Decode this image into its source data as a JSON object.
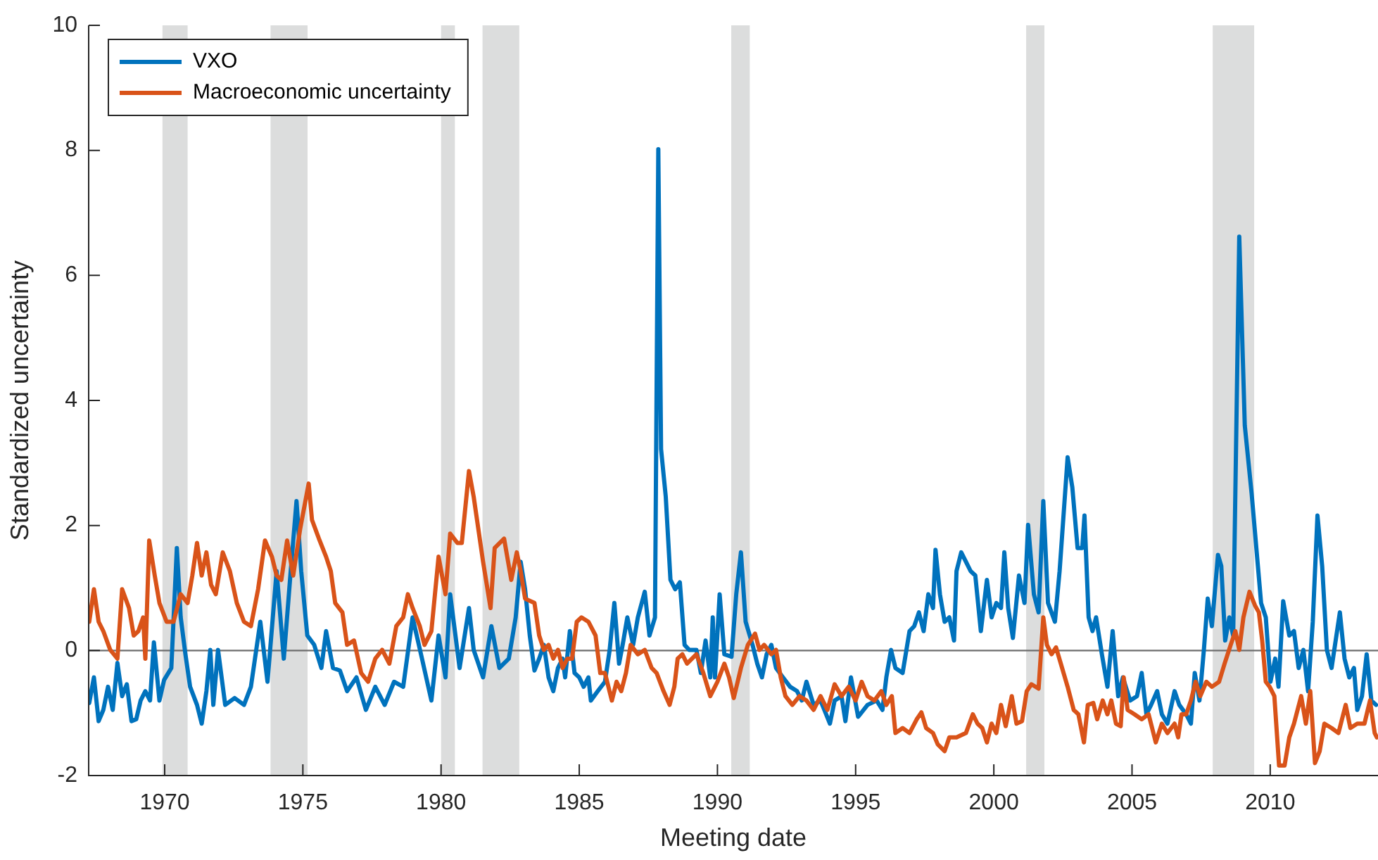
{
  "chart_data": {
    "type": "line",
    "xlabel": "Meeting date",
    "ylabel": "Standardized uncertainty",
    "xlim": [
      1967.25,
      2013.9
    ],
    "xticks": [
      1970,
      1975,
      1980,
      1985,
      1990,
      1995,
      2000,
      2005,
      2010
    ],
    "ylim": [
      -2,
      10
    ],
    "yticks": [
      -2,
      0,
      2,
      4,
      6,
      8,
      10
    ],
    "legend": "top left",
    "line_style": "solid",
    "marker": "none",
    "ref_lines": [
      {
        "axis": "y",
        "value": 0,
        "color": "#6e6e6e"
      }
    ],
    "bands": [
      {
        "axis": "x",
        "from": 1969.92,
        "to": 1970.83,
        "color": "#dcdddd"
      },
      {
        "axis": "x",
        "from": 1973.83,
        "to": 1975.17,
        "color": "#dcdddd"
      },
      {
        "axis": "x",
        "from": 1980.0,
        "to": 1980.5,
        "color": "#dcdddd"
      },
      {
        "axis": "x",
        "from": 1981.5,
        "to": 1982.83,
        "color": "#dcdddd"
      },
      {
        "axis": "x",
        "from": 1990.5,
        "to": 1991.17,
        "color": "#dcdddd"
      },
      {
        "axis": "x",
        "from": 2001.17,
        "to": 2001.83,
        "color": "#dcdddd"
      },
      {
        "axis": "x",
        "from": 2007.92,
        "to": 2009.42,
        "color": "#dcdddd"
      }
    ],
    "series": [
      {
        "name": "VXO",
        "color": "#0072bd",
        "x": [
          1967.27,
          1967.44,
          1967.61,
          1967.78,
          1967.95,
          1968.12,
          1968.29,
          1968.46,
          1968.63,
          1968.8,
          1968.97,
          1969.13,
          1969.3,
          1969.47,
          1969.61,
          1969.81,
          1969.98,
          1970.24,
          1970.44,
          1970.58,
          1970.75,
          1970.92,
          1971.17,
          1971.34,
          1971.51,
          1971.65,
          1971.76,
          1971.93,
          1972.19,
          1972.53,
          1972.87,
          1973.12,
          1973.46,
          1973.72,
          1974.05,
          1974.31,
          1974.56,
          1974.77,
          1974.94,
          1975.16,
          1975.41,
          1975.67,
          1975.84,
          1976.09,
          1976.34,
          1976.6,
          1976.94,
          1977.28,
          1977.62,
          1977.96,
          1978.3,
          1978.63,
          1978.97,
          1979.31,
          1979.65,
          1979.91,
          1980.16,
          1980.33,
          1980.67,
          1981.01,
          1981.18,
          1981.52,
          1981.82,
          1982.11,
          1982.45,
          1982.7,
          1982.88,
          1983.04,
          1983.21,
          1983.38,
          1983.55,
          1983.72,
          1983.89,
          1984.06,
          1984.23,
          1984.4,
          1984.49,
          1984.66,
          1984.83,
          1985.0,
          1985.16,
          1985.33,
          1985.42,
          1985.67,
          1985.93,
          1986.1,
          1986.27,
          1986.44,
          1986.57,
          1986.74,
          1986.95,
          1987.12,
          1987.37,
          1987.54,
          1987.74,
          1987.86,
          1987.96,
          1988.13,
          1988.3,
          1988.47,
          1988.64,
          1988.81,
          1988.98,
          1989.24,
          1989.4,
          1989.57,
          1989.74,
          1989.83,
          1989.91,
          1990.08,
          1990.25,
          1990.51,
          1990.68,
          1990.85,
          1991.02,
          1991.27,
          1991.44,
          1991.61,
          1991.78,
          1991.95,
          1992.12,
          1992.37,
          1992.63,
          1992.88,
          1993.05,
          1993.22,
          1993.48,
          1993.73,
          1994.07,
          1994.24,
          1994.49,
          1994.63,
          1994.83,
          1995.09,
          1995.43,
          1995.76,
          1995.97,
          1996.11,
          1996.28,
          1996.44,
          1996.7,
          1996.95,
          1997.12,
          1997.29,
          1997.46,
          1997.63,
          1997.8,
          1997.89,
          1998.05,
          1998.22,
          1998.39,
          1998.56,
          1998.65,
          1998.82,
          1998.99,
          1999.16,
          1999.33,
          1999.53,
          1999.75,
          1999.92,
          2000.09,
          2000.26,
          2000.38,
          2000.52,
          2000.69,
          2000.91,
          2001.11,
          2001.24,
          2001.45,
          2001.62,
          2001.79,
          2001.96,
          2002.21,
          2002.38,
          2002.67,
          2002.84,
          2003.03,
          2003.2,
          2003.28,
          2003.43,
          2003.57,
          2003.7,
          2003.91,
          2004.11,
          2004.3,
          2004.5,
          2004.67,
          2004.93,
          2005.18,
          2005.35,
          2005.52,
          2005.69,
          2005.91,
          2006.08,
          2006.28,
          2006.54,
          2006.71,
          2006.96,
          2007.13,
          2007.27,
          2007.44,
          2007.6,
          2007.74,
          2007.89,
          2008.11,
          2008.23,
          2008.37,
          2008.52,
          2008.66,
          2008.88,
          2009.08,
          2009.33,
          2009.67,
          2009.84,
          2010.01,
          2010.18,
          2010.3,
          2010.47,
          2010.69,
          2010.86,
          2011.03,
          2011.2,
          2011.37,
          2011.54,
          2011.71,
          2011.88,
          2012.05,
          2012.22,
          2012.52,
          2012.69,
          2012.86,
          2013.03,
          2013.15,
          2013.32,
          2013.49,
          2013.66,
          2013.83
        ],
        "values": [
          -0.84,
          -0.43,
          -1.13,
          -0.95,
          -0.58,
          -0.95,
          -0.2,
          -0.73,
          -0.54,
          -1.13,
          -1.1,
          -0.8,
          -0.65,
          -0.8,
          0.13,
          -0.8,
          -0.47,
          -0.28,
          1.64,
          0.53,
          -0.06,
          -0.58,
          -0.87,
          -1.17,
          -0.65,
          0.01,
          -0.87,
          0.01,
          -0.87,
          -0.76,
          -0.87,
          -0.58,
          0.46,
          -0.5,
          1.27,
          -0.13,
          1.27,
          2.39,
          1.27,
          0.24,
          0.09,
          -0.28,
          0.31,
          -0.28,
          -0.32,
          -0.65,
          -0.43,
          -0.95,
          -0.58,
          -0.87,
          -0.5,
          -0.58,
          0.53,
          -0.13,
          -0.8,
          0.24,
          -0.43,
          0.9,
          -0.28,
          0.68,
          0.01,
          -0.43,
          0.39,
          -0.28,
          -0.13,
          0.53,
          1.42,
          0.98,
          0.24,
          -0.32,
          -0.13,
          0.09,
          -0.43,
          -0.65,
          -0.28,
          -0.13,
          -0.43,
          0.31,
          -0.36,
          -0.43,
          -0.58,
          -0.43,
          -0.8,
          -0.65,
          -0.5,
          0.01,
          0.76,
          -0.21,
          0.09,
          0.53,
          0.09,
          0.53,
          0.94,
          0.24,
          0.53,
          8.02,
          3.22,
          2.46,
          1.13,
          0.98,
          1.09,
          0.09,
          0.01,
          0.01,
          -0.36,
          0.16,
          -0.43,
          0.53,
          -0.43,
          0.9,
          -0.06,
          -0.1,
          0.9,
          1.57,
          0.46,
          0.09,
          -0.21,
          -0.43,
          -0.06,
          0.09,
          -0.28,
          -0.43,
          -0.58,
          -0.65,
          -0.8,
          -0.5,
          -0.87,
          -0.8,
          -1.17,
          -0.8,
          -0.73,
          -1.13,
          -0.43,
          -1.06,
          -0.87,
          -0.8,
          -0.95,
          -0.43,
          0.01,
          -0.28,
          -0.36,
          0.31,
          0.39,
          0.61,
          0.31,
          0.9,
          0.68,
          1.61,
          0.9,
          0.46,
          0.53,
          0.16,
          1.27,
          1.57,
          1.42,
          1.27,
          1.2,
          0.31,
          1.13,
          0.53,
          0.76,
          0.68,
          1.57,
          0.68,
          0.2,
          1.2,
          0.76,
          2.01,
          0.9,
          0.61,
          2.39,
          0.76,
          0.46,
          1.27,
          3.09,
          2.61,
          1.64,
          1.64,
          2.16,
          0.53,
          0.31,
          0.53,
          -0.06,
          -0.58,
          0.31,
          -0.73,
          -0.43,
          -0.8,
          -0.73,
          -0.36,
          -1.02,
          -0.87,
          -0.65,
          -1.02,
          -1.17,
          -0.65,
          -0.87,
          -1.02,
          -1.17,
          -0.36,
          -0.8,
          0.01,
          0.83,
          0.39,
          1.53,
          1.35,
          0.16,
          0.53,
          0.24,
          6.62,
          3.6,
          2.5,
          0.76,
          0.53,
          -0.5,
          -0.13,
          -0.58,
          0.79,
          0.24,
          0.31,
          -0.28,
          0.01,
          -0.65,
          0.46,
          2.16,
          1.35,
          0.01,
          -0.28,
          0.61,
          -0.13,
          -0.43,
          -0.28,
          -0.95,
          -0.73,
          -0.06,
          -0.8,
          -0.87
        ]
      },
      {
        "name": "Macroeconomic uncertainty",
        "color": "#d95319",
        "x": [
          1967.27,
          1967.44,
          1967.61,
          1967.78,
          1968.03,
          1968.29,
          1968.46,
          1968.71,
          1968.88,
          1969.05,
          1969.22,
          1969.3,
          1969.44,
          1969.64,
          1969.81,
          1970.07,
          1970.32,
          1970.58,
          1970.83,
          1971.0,
          1971.17,
          1971.34,
          1971.51,
          1971.68,
          1971.85,
          1972.1,
          1972.36,
          1972.61,
          1972.87,
          1973.12,
          1973.38,
          1973.63,
          1973.88,
          1974.05,
          1974.22,
          1974.43,
          1974.65,
          1974.9,
          1975.21,
          1975.33,
          1975.58,
          1975.84,
          1976.01,
          1976.17,
          1976.43,
          1976.6,
          1976.85,
          1977.11,
          1977.36,
          1977.62,
          1977.87,
          1978.13,
          1978.38,
          1978.63,
          1978.8,
          1978.97,
          1979.23,
          1979.4,
          1979.65,
          1979.91,
          1980.16,
          1980.33,
          1980.59,
          1980.75,
          1981.01,
          1981.18,
          1981.52,
          1981.79,
          1981.94,
          1982.28,
          1982.54,
          1982.74,
          1982.88,
          1983.04,
          1983.38,
          1983.55,
          1983.72,
          1983.89,
          1984.06,
          1984.23,
          1984.4,
          1984.57,
          1984.74,
          1984.91,
          1985.08,
          1985.33,
          1985.59,
          1985.76,
          1985.93,
          1986.18,
          1986.35,
          1986.52,
          1986.69,
          1986.86,
          1987.12,
          1987.37,
          1987.62,
          1987.8,
          1988.05,
          1988.27,
          1988.44,
          1988.56,
          1988.73,
          1988.9,
          1989.24,
          1989.49,
          1989.74,
          1990.0,
          1990.25,
          1990.42,
          1990.59,
          1990.85,
          1991.1,
          1991.36,
          1991.52,
          1991.69,
          1991.95,
          1992.12,
          1992.29,
          1992.46,
          1992.71,
          1992.97,
          1993.22,
          1993.48,
          1993.73,
          1993.98,
          1994.24,
          1994.49,
          1994.75,
          1995.0,
          1995.22,
          1995.43,
          1995.68,
          1995.93,
          1996.11,
          1996.31,
          1996.44,
          1996.7,
          1996.95,
          1997.21,
          1997.38,
          1997.55,
          1997.8,
          1997.97,
          1998.22,
          1998.39,
          1998.65,
          1998.99,
          1999.24,
          1999.41,
          1999.58,
          1999.75,
          1999.92,
          2000.09,
          2000.26,
          2000.43,
          2000.65,
          2000.82,
          2001.02,
          2001.19,
          2001.36,
          2001.62,
          2001.79,
          2001.92,
          2002.09,
          2002.25,
          2002.47,
          2002.67,
          2002.89,
          2003.06,
          2003.26,
          2003.4,
          2003.6,
          2003.74,
          2003.94,
          2004.11,
          2004.25,
          2004.42,
          2004.59,
          2004.7,
          2004.84,
          2005.09,
          2005.35,
          2005.6,
          2005.86,
          2006.08,
          2006.28,
          2006.54,
          2006.67,
          2006.79,
          2006.96,
          2007.13,
          2007.3,
          2007.47,
          2007.69,
          2007.89,
          2008.15,
          2008.35,
          2008.57,
          2008.74,
          2008.88,
          2009.03,
          2009.25,
          2009.45,
          2009.59,
          2009.71,
          2009.84,
          2009.98,
          2010.15,
          2010.32,
          2010.52,
          2010.69,
          2010.86,
          2011.12,
          2011.29,
          2011.45,
          2011.62,
          2011.79,
          2011.96,
          2012.22,
          2012.47,
          2012.73,
          2012.9,
          2013.15,
          2013.41,
          2013.61,
          2013.78,
          2013.86
        ],
        "values": [
          0.46,
          0.98,
          0.46,
          0.31,
          0.01,
          -0.13,
          0.98,
          0.68,
          0.24,
          0.31,
          0.53,
          -0.13,
          1.76,
          1.2,
          0.76,
          0.46,
          0.46,
          0.9,
          0.76,
          1.2,
          1.72,
          1.2,
          1.57,
          1.05,
          0.9,
          1.57,
          1.27,
          0.76,
          0.46,
          0.39,
          0.98,
          1.76,
          1.5,
          1.2,
          1.13,
          1.76,
          1.2,
          1.94,
          2.67,
          2.09,
          1.79,
          1.5,
          1.27,
          0.76,
          0.61,
          0.09,
          0.16,
          -0.36,
          -0.5,
          -0.13,
          0.01,
          -0.21,
          0.39,
          0.53,
          0.9,
          0.68,
          0.39,
          0.09,
          0.31,
          1.5,
          0.9,
          1.87,
          1.72,
          1.72,
          2.87,
          2.46,
          1.42,
          0.68,
          1.64,
          1.79,
          1.13,
          1.57,
          1.27,
          0.83,
          0.76,
          0.24,
          0.01,
          0.09,
          -0.13,
          0.01,
          -0.28,
          -0.13,
          -0.13,
          0.46,
          0.53,
          0.46,
          0.24,
          -0.36,
          -0.36,
          -0.8,
          -0.5,
          -0.65,
          -0.36,
          0.09,
          -0.06,
          0.01,
          -0.28,
          -0.36,
          -0.65,
          -0.87,
          -0.58,
          -0.13,
          -0.06,
          -0.21,
          -0.06,
          -0.36,
          -0.73,
          -0.5,
          -0.21,
          -0.43,
          -0.76,
          -0.28,
          0.09,
          0.27,
          0.01,
          0.09,
          -0.06,
          0.01,
          -0.43,
          -0.73,
          -0.87,
          -0.73,
          -0.8,
          -0.95,
          -0.73,
          -0.95,
          -0.54,
          -0.73,
          -0.58,
          -0.8,
          -0.5,
          -0.73,
          -0.8,
          -0.65,
          -0.87,
          -0.73,
          -1.32,
          -1.24,
          -1.32,
          -1.1,
          -0.99,
          -1.24,
          -1.32,
          -1.5,
          -1.61,
          -1.39,
          -1.39,
          -1.32,
          -1.02,
          -1.17,
          -1.24,
          -1.47,
          -1.17,
          -1.32,
          -0.87,
          -1.21,
          -0.73,
          -1.17,
          -1.13,
          -0.65,
          -0.54,
          -0.61,
          0.53,
          0.09,
          -0.06,
          0.05,
          -0.28,
          -0.58,
          -0.95,
          -1.02,
          -1.47,
          -0.87,
          -0.84,
          -1.1,
          -0.8,
          -1.02,
          -0.8,
          -1.17,
          -1.21,
          -0.43,
          -0.95,
          -1.02,
          -1.1,
          -1.02,
          -1.47,
          -1.17,
          -1.32,
          -1.17,
          -1.39,
          -1.02,
          -1.02,
          -0.8,
          -0.5,
          -0.73,
          -0.5,
          -0.58,
          -0.5,
          -0.21,
          0.09,
          0.31,
          0.01,
          0.53,
          0.94,
          0.72,
          0.61,
          0.16,
          -0.5,
          -0.58,
          -0.73,
          -1.84,
          -1.84,
          -1.39,
          -1.17,
          -0.73,
          -1.17,
          -0.65,
          -1.8,
          -1.61,
          -1.17,
          -1.24,
          -1.32,
          -0.87,
          -1.24,
          -1.17,
          -1.17,
          -0.8,
          -1.32,
          -1.39
        ]
      }
    ]
  }
}
